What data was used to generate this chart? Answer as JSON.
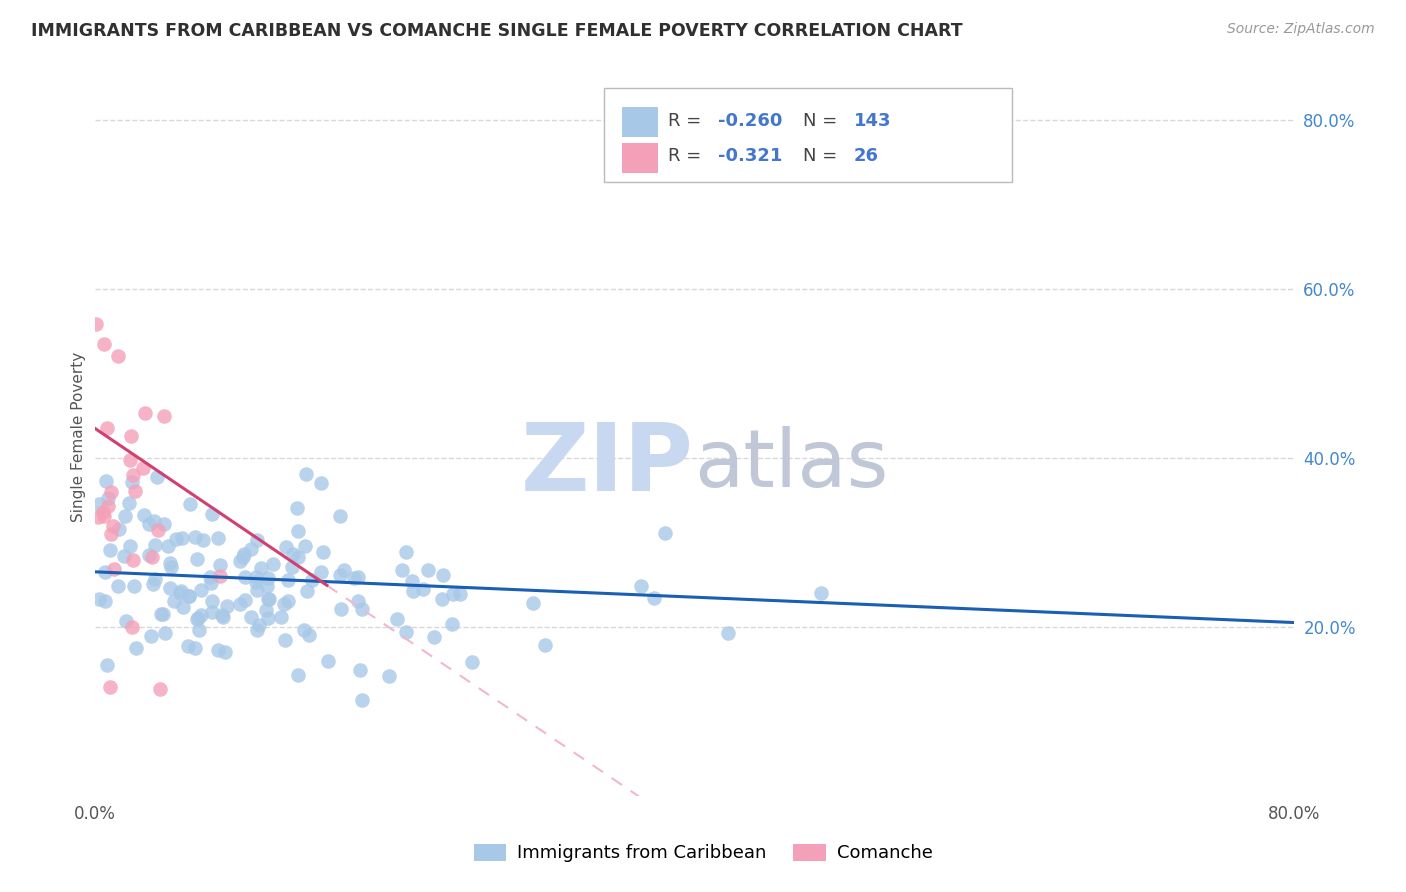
{
  "title": "IMMIGRANTS FROM CARIBBEAN VS COMANCHE SINGLE FEMALE POVERTY CORRELATION CHART",
  "source": "Source: ZipAtlas.com",
  "ylabel": "Single Female Poverty",
  "watermark": "ZIPatlas",
  "xlim": [
    0.0,
    0.8
  ],
  "ylim": [
    0.0,
    0.85
  ],
  "xtick_vals": [
    0.0,
    0.2,
    0.4,
    0.6,
    0.8
  ],
  "xtick_labels": [
    "0.0%",
    "",
    "",
    "",
    "80.0%"
  ],
  "ytick_vals": [
    0.2,
    0.4,
    0.6,
    0.8
  ],
  "ytick_labels": [
    "20.0%",
    "40.0%",
    "60.0%",
    "80.0%"
  ],
  "legend_labels": [
    "Immigrants from Caribbean",
    "Comanche"
  ],
  "caribbean_color": "#a8c8e8",
  "comanche_color": "#f4a0b8",
  "caribbean_line_color": "#1a5fb4",
  "comanche_line_color": "#d04070",
  "comanche_line_ext_color": "#f0b8cc",
  "grid_color": "#d8d8d8",
  "title_color": "#303030",
  "source_color": "#999999",
  "watermark_zip_color": "#c8d8f0",
  "watermark_atlas_color": "#c0c8d8",
  "legend_R_caribbean": "-0.260",
  "legend_N_caribbean": "143",
  "legend_R_comanche": "-0.321",
  "legend_N_comanche": "26",
  "legend_value_color": "#4477cc",
  "caribbean_seed": 42,
  "comanche_seed": 7,
  "caribbean_R": -0.26,
  "comanche_R": -0.321,
  "caribbean_N": 143,
  "comanche_N": 26
}
